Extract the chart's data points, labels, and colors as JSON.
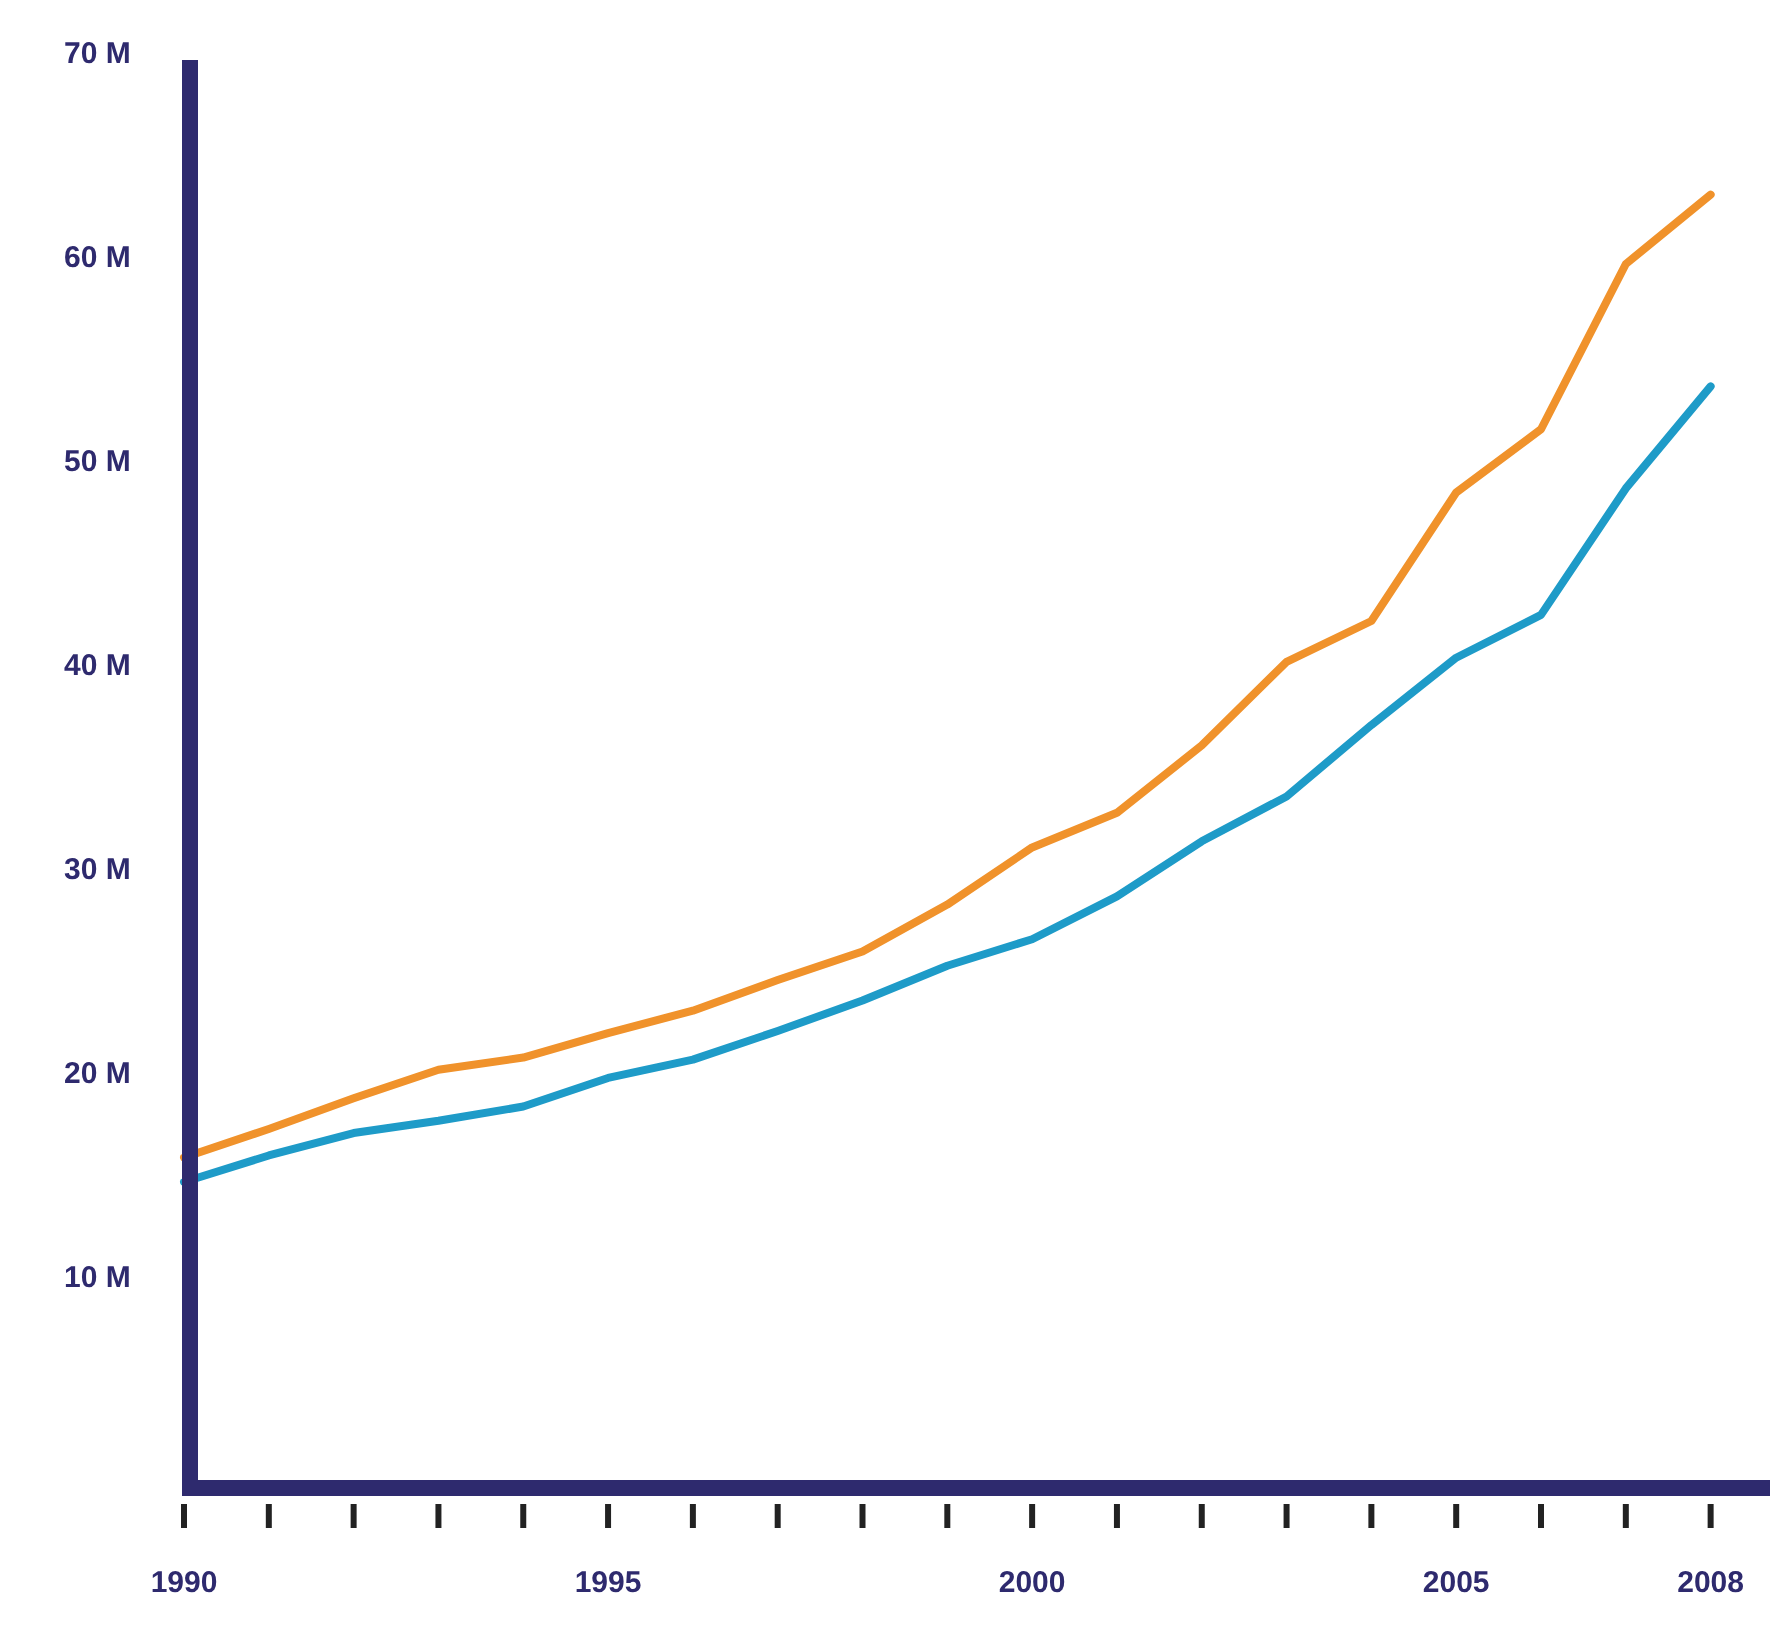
{
  "chart_data": {
    "type": "line",
    "x": [
      1990,
      1991,
      1992,
      1993,
      1994,
      1995,
      1996,
      1997,
      1998,
      1999,
      2000,
      2001,
      2002,
      2003,
      2004,
      2005,
      2006,
      2007,
      2008
    ],
    "series": [
      {
        "color": "#f0922b",
        "values": [
          16.2,
          17.6,
          19.1,
          20.5,
          21.1,
          22.3,
          23.4,
          24.9,
          26.3,
          28.6,
          31.4,
          33.1,
          36.4,
          40.5,
          42.5,
          48.8,
          51.9,
          60,
          63.4
        ]
      },
      {
        "color": "#1e9bc8",
        "values": [
          15.0,
          16.3,
          17.4,
          18,
          18.7,
          20.1,
          21,
          22.4,
          23.9,
          25.6,
          26.9,
          29,
          31.7,
          33.9,
          37.4,
          40.7,
          42.8,
          49,
          54
        ]
      }
    ],
    "xlim": [
      1990,
      2008.7
    ],
    "xticks": [
      1990,
      {
        "value": 1991,
        "label": null
      },
      {
        "value": 1992,
        "label": null
      },
      {
        "value": 1993,
        "label": null
      },
      {
        "value": 1994,
        "label": null
      },
      1995,
      {
        "value": 1996,
        "label": null
      },
      {
        "value": 1997,
        "label": null
      },
      {
        "value": 1998,
        "label": null
      },
      {
        "value": 1999,
        "label": null
      },
      2000,
      {
        "value": 2001,
        "label": null
      },
      {
        "value": 2002,
        "label": null
      },
      {
        "value": 2003,
        "label": null
      },
      {
        "value": 2004,
        "label": null
      },
      2005,
      {
        "value": 2006,
        "label": null
      },
      {
        "value": 2007,
        "label": null
      },
      2008
    ],
    "ylim": [
      0,
      70
    ],
    "yticks": [
      {
        "value": 10,
        "label": "10 M"
      },
      {
        "value": 20,
        "label": "20 M"
      },
      {
        "value": 30,
        "label": "30 M"
      },
      {
        "value": 40,
        "label": "40 M"
      },
      {
        "value": 50,
        "label": "50 M"
      },
      {
        "value": 60,
        "label": "60 M"
      },
      {
        "value": 70,
        "label": "70 M"
      }
    ],
    "grid": false,
    "marker": "none",
    "line_style": "solid"
  }
}
